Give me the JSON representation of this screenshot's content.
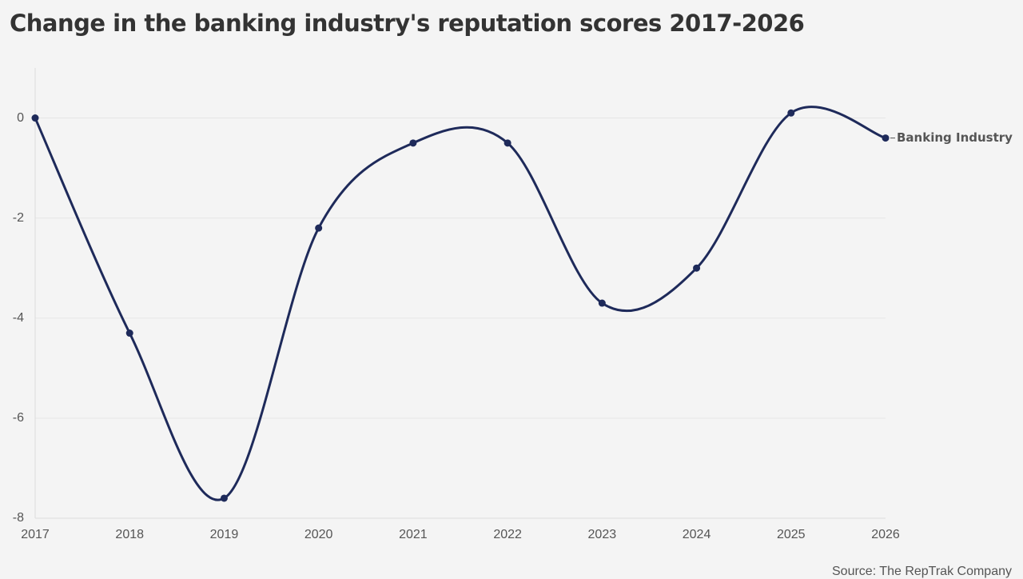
{
  "chart_data": {
    "type": "line",
    "title": "Change in the banking industry's reputation scores 2017-2026",
    "xlabel": "",
    "ylabel": "",
    "x": [
      2017,
      2018,
      2019,
      2020,
      2021,
      2022,
      2023,
      2024,
      2025,
      2026
    ],
    "x_tick_labels": [
      "2017",
      "2018",
      "2019",
      "2020",
      "2021",
      "2022",
      "2023",
      "2024",
      "2025",
      "2026"
    ],
    "y_ticks": [
      0,
      -2,
      -4,
      -6,
      -8
    ],
    "y_tick_labels": [
      "0",
      "-2",
      "-4",
      "-6",
      "-8"
    ],
    "ylim": [
      -8,
      1
    ],
    "xlim": [
      2017,
      2026
    ],
    "grid": true,
    "legend": "none",
    "series": [
      {
        "name": "Banking Industry",
        "values": [
          0,
          -4.3,
          -7.6,
          -2.2,
          -0.5,
          -0.5,
          -3.7,
          -3.0,
          0.1,
          -0.4
        ],
        "color": "#1e2a5a"
      }
    ],
    "source": "Source: The RepTrak Company"
  },
  "colors": {
    "background": "#f4f4f4",
    "gridline": "#e6e6e6",
    "axis": "#dddddd",
    "line": "#1e2a5a",
    "text": "#333333",
    "muted_text": "#555555"
  }
}
